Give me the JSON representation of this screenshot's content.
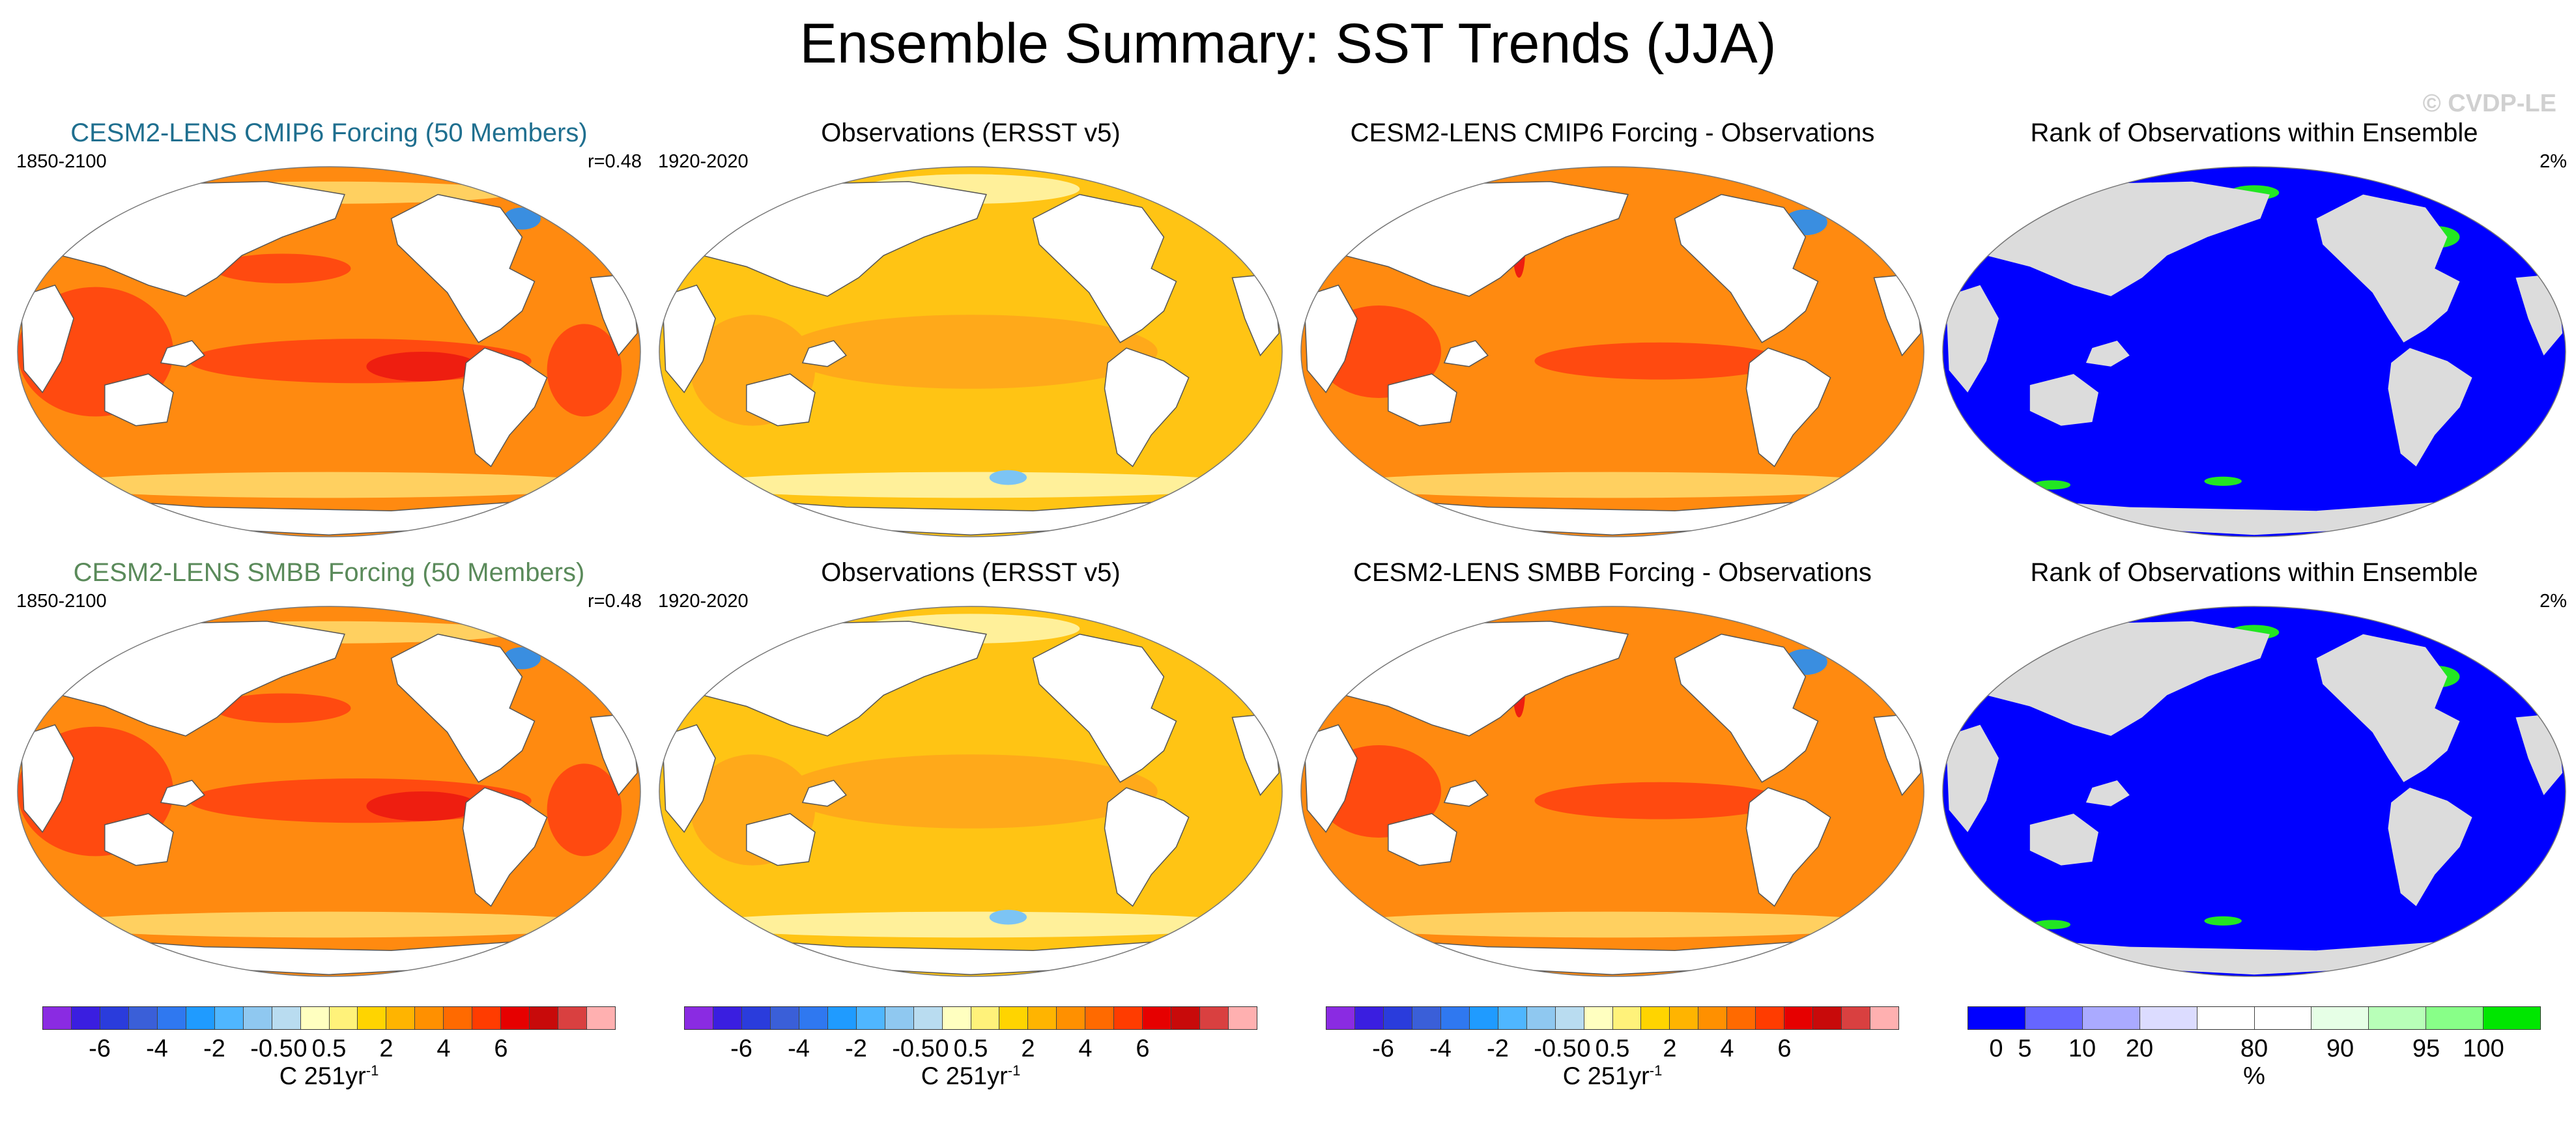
{
  "title": "Ensemble Summary: SST Trends (JJA)",
  "watermark": "© CVDP-LE",
  "panels": [
    {
      "title": "CESM2-LENS CMIP6 Forcing (50 Members)",
      "title_color": "#1f6f8f",
      "left": "1850-2100",
      "right": "r=0.48",
      "style": "model"
    },
    {
      "title": "Observations (ERSST v5)",
      "title_color": "#000000",
      "left": "1920-2020",
      "right": "",
      "style": "obs"
    },
    {
      "title": "CESM2-LENS CMIP6 Forcing - Observations",
      "title_color": "#000000",
      "left": "",
      "right": "",
      "style": "diff"
    },
    {
      "title": "Rank of Observations within Ensemble",
      "title_color": "#000000",
      "left": "",
      "right": "2%",
      "style": "rank"
    },
    {
      "title": "CESM2-LENS SMBB Forcing (50 Members)",
      "title_color": "#5a8a5a",
      "left": "1850-2100",
      "right": "r=0.48",
      "style": "model"
    },
    {
      "title": "Observations (ERSST v5)",
      "title_color": "#000000",
      "left": "1920-2020",
      "right": "",
      "style": "obs"
    },
    {
      "title": "CESM2-LENS SMBB Forcing - Observations",
      "title_color": "#000000",
      "left": "",
      "right": "",
      "style": "diff"
    },
    {
      "title": "Rank of Observations within Ensemble",
      "title_color": "#000000",
      "left": "",
      "right": "2%",
      "style": "rank"
    }
  ],
  "colorbars": [
    {
      "colors": [
        "#8a2be2",
        "#3a1ee0",
        "#2a3cdc",
        "#3a5fd8",
        "#2f78f0",
        "#1f9bff",
        "#4fb6ff",
        "#8fc8f0",
        "#b9dcf0",
        "#ffffc0",
        "#fff27a",
        "#ffd400",
        "#ffb400",
        "#ff9000",
        "#ff6a00",
        "#ff3c00",
        "#e60000",
        "#c80a0a",
        "#d94040",
        "#ffb0b0"
      ],
      "labels": [
        "-6",
        "-4",
        "-2",
        "-0.5",
        "0",
        "0.5",
        "2",
        "4",
        "6"
      ],
      "label_positions": [
        2,
        4,
        6,
        8,
        9,
        10,
        12,
        14,
        16
      ],
      "unit": "C 251yr",
      "unit_sup": "-1"
    },
    {
      "colors": [
        "#8a2be2",
        "#3a1ee0",
        "#2a3cdc",
        "#3a5fd8",
        "#2f78f0",
        "#1f9bff",
        "#4fb6ff",
        "#8fc8f0",
        "#b9dcf0",
        "#ffffc0",
        "#fff27a",
        "#ffd400",
        "#ffb400",
        "#ff9000",
        "#ff6a00",
        "#ff3c00",
        "#e60000",
        "#c80a0a",
        "#d94040",
        "#ffb0b0"
      ],
      "labels": [
        "-6",
        "-4",
        "-2",
        "-0.5",
        "0",
        "0.5",
        "2",
        "4",
        "6"
      ],
      "label_positions": [
        2,
        4,
        6,
        8,
        9,
        10,
        12,
        14,
        16
      ],
      "unit": "C 251yr",
      "unit_sup": "-1"
    },
    {
      "colors": [
        "#8a2be2",
        "#3a1ee0",
        "#2a3cdc",
        "#3a5fd8",
        "#2f78f0",
        "#1f9bff",
        "#4fb6ff",
        "#8fc8f0",
        "#b9dcf0",
        "#ffffc0",
        "#fff27a",
        "#ffd400",
        "#ffb400",
        "#ff9000",
        "#ff6a00",
        "#ff3c00",
        "#e60000",
        "#c80a0a",
        "#d94040",
        "#ffb0b0"
      ],
      "labels": [
        "-6",
        "-4",
        "-2",
        "-0.5",
        "0",
        "0.5",
        "2",
        "4",
        "6"
      ],
      "label_positions": [
        2,
        4,
        6,
        8,
        9,
        10,
        12,
        14,
        16
      ],
      "unit": "C 251yr",
      "unit_sup": "-1"
    },
    {
      "colors": [
        "#0000ff",
        "#6666ff",
        "#aaaaff",
        "#dcdcff",
        "#ffffff",
        "#ffffff",
        "#e6ffe6",
        "#b8ffb8",
        "#88ff88",
        "#00e600"
      ],
      "labels": [
        "0",
        "5",
        "10",
        "20",
        "80",
        "90",
        "95",
        "100"
      ],
      "label_positions": [
        0.5,
        1,
        2,
        3,
        5,
        6.5,
        8,
        9
      ],
      "unit": "%",
      "unit_sup": ""
    }
  ],
  "map_colors": {
    "land": "#ffffff",
    "coast": "#555555",
    "model_base": "#ff8a10",
    "model_hot": "#ff4a10",
    "model_hotter": "#ee1e10",
    "model_cool": "#ffd060",
    "obs_base": "#ffc414",
    "obs_warm": "#ffa91a",
    "obs_pale": "#fff09a",
    "blue": "#7cc4f4",
    "blue_dark": "#3a8ee0",
    "rank_ocean": "#0000ff",
    "rank_land": "#dcdcdc",
    "rank_green": "#22e622"
  }
}
